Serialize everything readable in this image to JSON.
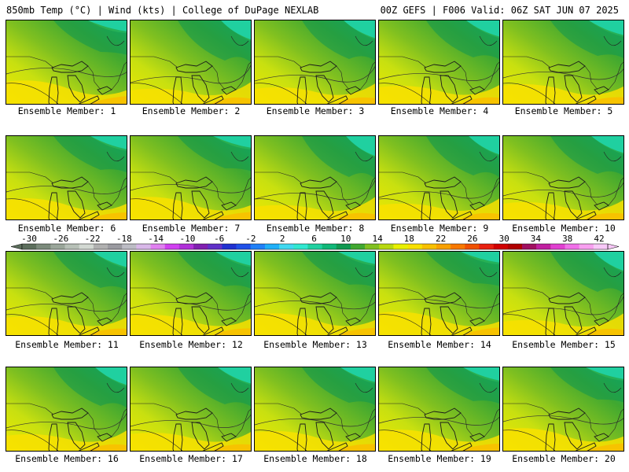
{
  "header": {
    "left_title": "850mb Temp (°C) | Wind (kts) | College of DuPage NEXLAB",
    "right_title": "00Z GEFS | F006 Valid: 06Z SAT JUN 07 2025"
  },
  "panels": [
    {
      "label": "Ensemble Member: 1"
    },
    {
      "label": "Ensemble Member: 2"
    },
    {
      "label": "Ensemble Member: 3"
    },
    {
      "label": "Ensemble Member: 4"
    },
    {
      "label": "Ensemble Member: 5"
    },
    {
      "label": "Ensemble Member: 6"
    },
    {
      "label": "Ensemble Member: 7"
    },
    {
      "label": "Ensemble Member: 8"
    },
    {
      "label": "Ensemble Member: 9"
    },
    {
      "label": "Ensemble Member: 10"
    },
    {
      "label": "Ensemble Member: 11"
    },
    {
      "label": "Ensemble Member: 12"
    },
    {
      "label": "Ensemble Member: 13"
    },
    {
      "label": "Ensemble Member: 14"
    },
    {
      "label": "Ensemble Member: 15"
    },
    {
      "label": "Ensemble Member: 16"
    },
    {
      "label": "Ensemble Member: 17"
    },
    {
      "label": "Ensemble Member: 18"
    },
    {
      "label": "Ensemble Member: 19"
    },
    {
      "label": "Ensemble Member: 20"
    }
  ],
  "colorbar": {
    "tick_labels": [
      "-30",
      "-26",
      "-22",
      "-18",
      "-14",
      "-10",
      "-6",
      "-2",
      "2",
      "6",
      "10",
      "14",
      "18",
      "22",
      "26",
      "30",
      "34",
      "38",
      "42"
    ],
    "colors": [
      "#5c6e5c",
      "#7b8a7b",
      "#9aa69a",
      "#b7c0b7",
      "#d2d8d2",
      "#b0b0b0",
      "#9a9aa0",
      "#bcbcc4",
      "#d8b8e8",
      "#e080f0",
      "#d040f0",
      "#b030d8",
      "#8020b0",
      "#6030c8",
      "#2030d0",
      "#2050e8",
      "#2080f8",
      "#20b0f8",
      "#40d8f0",
      "#30e8d0",
      "#20d0a0",
      "#10b878",
      "#109850",
      "#40a830",
      "#80c020",
      "#b8d810",
      "#e8f000",
      "#f8e000",
      "#f8c000",
      "#f8a000",
      "#f87800",
      "#f05000",
      "#e82010",
      "#d00000",
      "#b00000",
      "#a01060",
      "#c020a0",
      "#e040d0",
      "#f070e8",
      "#f8a0f0",
      "#f8c8f8"
    ]
  }
}
